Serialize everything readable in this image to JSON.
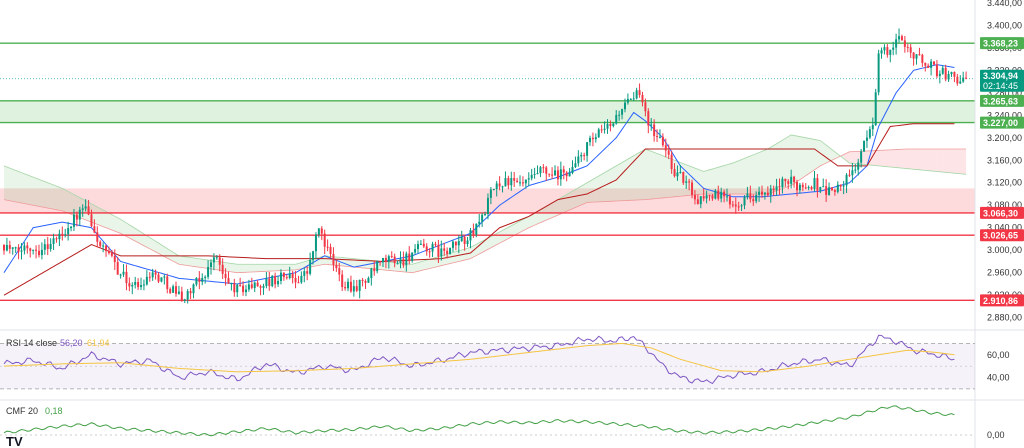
{
  "chart_data": [
    {
      "type": "candlestick",
      "title": "",
      "xlabel": "",
      "ylabel": "",
      "ylim": [
        2867,
        3445
      ],
      "y_ticks": [
        "3.440,00",
        "3.400,00",
        "3.360,00",
        "3.320,00",
        "3.280,00",
        "3.240,00",
        "3.200,00",
        "3.160,00",
        "3.120,00",
        "3.080,00",
        "3.040,00",
        "3.000,00",
        "2.960,00",
        "2.920,00",
        "2.880,00"
      ],
      "grid": false,
      "horizontal_levels": [
        {
          "value": 3368.23,
          "label": "3.368,23",
          "color": "#4caf50"
        },
        {
          "value": 3265.63,
          "label": "3.265,63",
          "color": "#4caf50"
        },
        {
          "value": 3227.0,
          "label": "3.227,00",
          "color": "#4caf50"
        },
        {
          "value": 3066.3,
          "label": "3.066,30",
          "color": "#f23645"
        },
        {
          "value": 3026.65,
          "label": "3.026,65",
          "color": "#f23645"
        },
        {
          "value": 2910.86,
          "label": "2.910,86",
          "color": "#f23645"
        }
      ],
      "zones": [
        {
          "from": 3227.0,
          "to": 3265.63,
          "color": "#4caf50"
        },
        {
          "from": 3066.3,
          "to": 3110.0,
          "color": "#f23645"
        }
      ],
      "current_price": {
        "label": "3.304,94",
        "countdown": "02:14:45",
        "value": 3304.94
      },
      "ohlc_anchors": [
        [
          0,
          3010
        ],
        [
          4,
          2995
        ],
        [
          8,
          3008
        ],
        [
          12,
          3002
        ],
        [
          16,
          3012
        ],
        [
          20,
          3030
        ],
        [
          24,
          3055
        ],
        [
          28,
          3075
        ],
        [
          30,
          3040
        ],
        [
          34,
          3000
        ],
        [
          38,
          2975
        ],
        [
          42,
          2945
        ],
        [
          46,
          2935
        ],
        [
          50,
          2960
        ],
        [
          54,
          2950
        ],
        [
          58,
          2930
        ],
        [
          62,
          2915
        ],
        [
          66,
          2940
        ],
        [
          70,
          2965
        ],
        [
          72,
          2995
        ],
        [
          76,
          2945
        ],
        [
          80,
          2930
        ],
        [
          84,
          2935
        ],
        [
          88,
          2940
        ],
        [
          92,
          2945
        ],
        [
          96,
          2955
        ],
        [
          100,
          2950
        ],
        [
          104,
          2960
        ],
        [
          108,
          3040
        ],
        [
          112,
          2985
        ],
        [
          116,
          2945
        ],
        [
          120,
          2935
        ],
        [
          124,
          2945
        ],
        [
          128,
          2970
        ],
        [
          132,
          2985
        ],
        [
          136,
          2980
        ],
        [
          140,
          2995
        ],
        [
          144,
          3005
        ],
        [
          148,
          3000
        ],
        [
          152,
          2995
        ],
        [
          156,
          3015
        ],
        [
          160,
          3025
        ],
        [
          164,
          3060
        ],
        [
          168,
          3110
        ],
        [
          172,
          3125
        ],
        [
          176,
          3115
        ],
        [
          180,
          3120
        ],
        [
          184,
          3140
        ],
        [
          188,
          3130
        ],
        [
          192,
          3135
        ],
        [
          196,
          3150
        ],
        [
          200,
          3185
        ],
        [
          204,
          3205
        ],
        [
          208,
          3220
        ],
        [
          212,
          3255
        ],
        [
          216,
          3265
        ],
        [
          218,
          3285
        ],
        [
          220,
          3250
        ],
        [
          222,
          3215
        ],
        [
          226,
          3190
        ],
        [
          230,
          3140
        ],
        [
          234,
          3120
        ],
        [
          238,
          3090
        ],
        [
          242,
          3100
        ],
        [
          246,
          3095
        ],
        [
          250,
          3085
        ],
        [
          254,
          3092
        ],
        [
          258,
          3100
        ],
        [
          262,
          3095
        ],
        [
          266,
          3115
        ],
        [
          270,
          3120
        ],
        [
          274,
          3115
        ],
        [
          278,
          3120
        ],
        [
          282,
          3105
        ],
        [
          286,
          3110
        ],
        [
          290,
          3130
        ],
        [
          294,
          3170
        ],
        [
          298,
          3230
        ],
        [
          300,
          3350
        ],
        [
          304,
          3355
        ],
        [
          308,
          3380
        ],
        [
          312,
          3345
        ],
        [
          316,
          3335
        ],
        [
          320,
          3320
        ],
        [
          324,
          3310
        ],
        [
          328,
          3305
        ],
        [
          330,
          3305
        ]
      ],
      "ichimoku": {
        "span_a": [
          [
            0,
            3150
          ],
          [
            20,
            3110
          ],
          [
            40,
            3055
          ],
          [
            60,
            2990
          ],
          [
            80,
            2975
          ],
          [
            100,
            2975
          ],
          [
            110,
            2990
          ],
          [
            120,
            2985
          ],
          [
            140,
            2975
          ],
          [
            160,
            3005
          ],
          [
            180,
            3060
          ],
          [
            200,
            3120
          ],
          [
            220,
            3180
          ],
          [
            240,
            3140
          ],
          [
            250,
            3155
          ],
          [
            262,
            3180
          ],
          [
            270,
            3205
          ],
          [
            280,
            3195
          ],
          [
            290,
            3155
          ],
          [
            310,
            3145
          ],
          [
            330,
            3135
          ]
        ],
        "span_b": [
          [
            0,
            3090
          ],
          [
            20,
            3070
          ],
          [
            40,
            3030
          ],
          [
            60,
            2975
          ],
          [
            80,
            2960
          ],
          [
            100,
            2965
          ],
          [
            110,
            2975
          ],
          [
            120,
            2970
          ],
          [
            140,
            2960
          ],
          [
            160,
            2985
          ],
          [
            180,
            3040
          ],
          [
            200,
            3085
          ],
          [
            220,
            3090
          ],
          [
            240,
            3100
          ],
          [
            250,
            3100
          ],
          [
            262,
            3100
          ],
          [
            270,
            3115
          ],
          [
            280,
            3150
          ],
          [
            290,
            3175
          ],
          [
            310,
            3180
          ],
          [
            330,
            3180
          ]
        ],
        "conversion": [
          [
            0,
            2960
          ],
          [
            10,
            3040
          ],
          [
            20,
            3050
          ],
          [
            30,
            3040
          ],
          [
            40,
            2980
          ],
          [
            60,
            2950
          ],
          [
            80,
            2940
          ],
          [
            100,
            2960
          ],
          [
            110,
            2990
          ],
          [
            120,
            2970
          ],
          [
            140,
            2990
          ],
          [
            160,
            3030
          ],
          [
            170,
            3080
          ],
          [
            180,
            3115
          ],
          [
            190,
            3130
          ],
          [
            200,
            3150
          ],
          [
            210,
            3200
          ],
          [
            216,
            3245
          ],
          [
            220,
            3230
          ],
          [
            226,
            3200
          ],
          [
            232,
            3150
          ],
          [
            240,
            3110
          ],
          [
            250,
            3095
          ],
          [
            260,
            3095
          ],
          [
            270,
            3100
          ],
          [
            280,
            3105
          ],
          [
            290,
            3120
          ],
          [
            296,
            3150
          ],
          [
            300,
            3220
          ],
          [
            306,
            3280
          ],
          [
            312,
            3320
          ],
          [
            320,
            3330
          ],
          [
            326,
            3325
          ]
        ],
        "base": [
          [
            0,
            2920
          ],
          [
            20,
            2980
          ],
          [
            30,
            3010
          ],
          [
            40,
            2990
          ],
          [
            70,
            2990
          ],
          [
            90,
            2985
          ],
          [
            110,
            2985
          ],
          [
            130,
            2980
          ],
          [
            150,
            2985
          ],
          [
            160,
            2995
          ],
          [
            170,
            3040
          ],
          [
            180,
            3060
          ],
          [
            190,
            3090
          ],
          [
            200,
            3100
          ],
          [
            210,
            3125
          ],
          [
            220,
            3180
          ],
          [
            230,
            3180
          ],
          [
            240,
            3180
          ],
          [
            260,
            3180
          ],
          [
            270,
            3180
          ],
          [
            278,
            3180
          ],
          [
            286,
            3150
          ],
          [
            296,
            3150
          ],
          [
            304,
            3220
          ],
          [
            312,
            3225
          ],
          [
            320,
            3225
          ],
          [
            326,
            3225
          ]
        ]
      }
    },
    {
      "type": "line",
      "title": "RSI",
      "legend_label": "RSI 14 close",
      "values_label": [
        "56,20",
        "61,94"
      ],
      "y_ticks": [
        "60,00",
        "40,00"
      ],
      "band": [
        30,
        70
      ],
      "ylim": [
        22,
        80
      ],
      "series": [
        {
          "name": "RSI",
          "color": "#7e57c2",
          "points": [
            [
              0,
              52
            ],
            [
              10,
              55
            ],
            [
              20,
              48
            ],
            [
              30,
              60
            ],
            [
              40,
              52
            ],
            [
              50,
              55
            ],
            [
              60,
              40
            ],
            [
              70,
              45
            ],
            [
              80,
              38
            ],
            [
              90,
              52
            ],
            [
              100,
              44
            ],
            [
              110,
              50
            ],
            [
              120,
              46
            ],
            [
              130,
              58
            ],
            [
              140,
              50
            ],
            [
              150,
              55
            ],
            [
              160,
              62
            ],
            [
              170,
              64
            ],
            [
              180,
              66
            ],
            [
              190,
              68
            ],
            [
              200,
              74
            ],
            [
              210,
              72
            ],
            [
              216,
              76
            ],
            [
              222,
              62
            ],
            [
              226,
              50
            ],
            [
              232,
              40
            ],
            [
              240,
              36
            ],
            [
              250,
              42
            ],
            [
              260,
              45
            ],
            [
              270,
              52
            ],
            [
              280,
              56
            ],
            [
              290,
              50
            ],
            [
              300,
              76
            ],
            [
              306,
              72
            ],
            [
              312,
              64
            ],
            [
              320,
              60
            ],
            [
              326,
              56
            ]
          ]
        },
        {
          "name": "RSI-based MA",
          "color": "#f5c542",
          "points": [
            [
              0,
              50
            ],
            [
              20,
              52
            ],
            [
              40,
              53
            ],
            [
              60,
              48
            ],
            [
              80,
              45
            ],
            [
              100,
              46
            ],
            [
              120,
              48
            ],
            [
              140,
              52
            ],
            [
              160,
              56
            ],
            [
              180,
              62
            ],
            [
              200,
              68
            ],
            [
              212,
              70
            ],
            [
              222,
              66
            ],
            [
              232,
              56
            ],
            [
              246,
              46
            ],
            [
              260,
              45
            ],
            [
              276,
              50
            ],
            [
              290,
              56
            ],
            [
              300,
              60
            ],
            [
              310,
              64
            ],
            [
              320,
              62
            ],
            [
              326,
              60
            ]
          ]
        }
      ]
    },
    {
      "type": "line",
      "title": "CMF",
      "legend_label": "CMF 20",
      "values_label": [
        "0,18"
      ],
      "y_ticks": [
        "0,00"
      ],
      "ylim": [
        -0.1,
        0.3
      ],
      "series": [
        {
          "name": "CMF",
          "color": "#43a047",
          "points": [
            [
              0,
              0.02
            ],
            [
              10,
              0.05
            ],
            [
              20,
              0.08
            ],
            [
              30,
              0.1
            ],
            [
              40,
              0.06
            ],
            [
              50,
              0.04
            ],
            [
              60,
              0.02
            ],
            [
              70,
              0.0
            ],
            [
              80,
              0.03
            ],
            [
              90,
              0.06
            ],
            [
              100,
              0.02
            ],
            [
              110,
              0.04
            ],
            [
              120,
              0.05
            ],
            [
              130,
              0.08
            ],
            [
              140,
              0.04
            ],
            [
              150,
              0.06
            ],
            [
              160,
              0.1
            ],
            [
              170,
              0.12
            ],
            [
              180,
              0.11
            ],
            [
              190,
              0.13
            ],
            [
              200,
              0.12
            ],
            [
              210,
              0.1
            ],
            [
              220,
              0.08
            ],
            [
              230,
              0.04
            ],
            [
              240,
              0.02
            ],
            [
              250,
              0.03
            ],
            [
              260,
              0.05
            ],
            [
              270,
              0.08
            ],
            [
              280,
              0.12
            ],
            [
              290,
              0.16
            ],
            [
              298,
              0.22
            ],
            [
              304,
              0.26
            ],
            [
              310,
              0.24
            ],
            [
              318,
              0.2
            ],
            [
              326,
              0.18
            ]
          ]
        }
      ]
    }
  ],
  "branding": {
    "logo": "TV"
  }
}
